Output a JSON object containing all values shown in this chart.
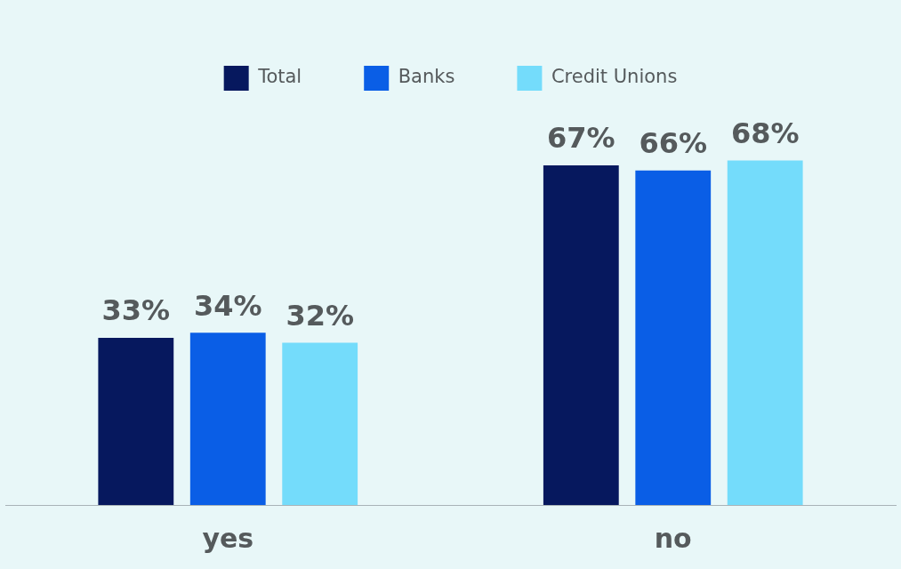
{
  "chart_data": {
    "type": "bar",
    "categories": [
      "yes",
      "no"
    ],
    "series": [
      {
        "name": "Total",
        "color": "#06185e",
        "values": [
          33,
          67
        ],
        "value_labels": [
          "33%",
          "67%"
        ]
      },
      {
        "name": "Banks",
        "color": "#0a5ee6",
        "values": [
          34,
          66
        ],
        "value_labels": [
          "34%",
          "66%"
        ]
      },
      {
        "name": "Credit Unions",
        "color": "#74dcfb",
        "values": [
          32,
          68
        ],
        "value_labels": [
          "32%",
          "68%"
        ]
      }
    ],
    "legend": "top",
    "grid": false,
    "tick_labels": "x"
  }
}
